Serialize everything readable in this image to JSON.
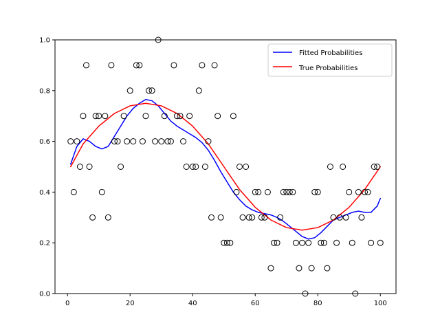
{
  "chart_data": {
    "type": "scatter",
    "title": "",
    "xlabel": "",
    "ylabel": "",
    "xlim": [
      -4,
      105
    ],
    "ylim": [
      0,
      1
    ],
    "x_ticks": [
      0,
      20,
      40,
      60,
      80,
      100
    ],
    "y_ticks": [
      0.0,
      0.2,
      0.4,
      0.6,
      0.8,
      1.0
    ],
    "x_tick_labels": [
      "0",
      "20",
      "40",
      "60",
      "80",
      "100"
    ],
    "y_tick_labels": [
      "0.0",
      "0.2",
      "0.4",
      "0.6",
      "0.8",
      "1.0"
    ],
    "grid": false,
    "legend_position": "top-right",
    "points": {
      "x": [
        1,
        2,
        3,
        4,
        5,
        6,
        7,
        8,
        9,
        10,
        11,
        12,
        13,
        14,
        15,
        16,
        17,
        18,
        19,
        20,
        21,
        22,
        23,
        24,
        25,
        26,
        27,
        28,
        29,
        30,
        31,
        32,
        33,
        34,
        35,
        36,
        37,
        38,
        39,
        40,
        41,
        42,
        43,
        44,
        45,
        46,
        47,
        48,
        49,
        50,
        51,
        52,
        53,
        54,
        55,
        56,
        57,
        58,
        59,
        60,
        61,
        62,
        63,
        64,
        65,
        66,
        67,
        68,
        69,
        70,
        71,
        72,
        73,
        74,
        75,
        76,
        77,
        78,
        79,
        80,
        81,
        82,
        83,
        84,
        85,
        86,
        87,
        88,
        89,
        90,
        91,
        92,
        93,
        94,
        95,
        96,
        97,
        98,
        99,
        100
      ],
      "y": [
        0.6,
        0.4,
        0.6,
        0.5,
        0.7,
        0.9,
        0.5,
        0.3,
        0.7,
        0.7,
        0.4,
        0.7,
        0.3,
        0.9,
        0.6,
        0.6,
        0.5,
        0.7,
        0.6,
        0.8,
        0.6,
        0.9,
        0.9,
        0.6,
        0.7,
        0.8,
        0.8,
        0.6,
        1.0,
        0.6,
        0.7,
        0.6,
        0.6,
        0.9,
        0.7,
        0.7,
        0.6,
        0.5,
        0.7,
        0.5,
        0.5,
        0.8,
        0.9,
        0.5,
        0.6,
        0.3,
        0.9,
        0.7,
        0.3,
        0.2,
        0.2,
        0.2,
        0.7,
        0.4,
        0.5,
        0.3,
        0.5,
        0.3,
        0.3,
        0.4,
        0.4,
        0.3,
        0.3,
        0.4,
        0.1,
        0.2,
        0.2,
        0.3,
        0.4,
        0.4,
        0.4,
        0.4,
        0.2,
        0.1,
        0.2,
        0.0,
        0.2,
        0.1,
        0.4,
        0.4,
        0.2,
        0.2,
        0.1,
        0.5,
        0.3,
        0.2,
        0.3,
        0.5,
        0.3,
        0.4,
        0.2,
        0.0,
        0.4,
        0.3,
        0.4,
        0.4,
        0.2,
        0.5,
        0.5,
        0.2
      ]
    },
    "series": [
      {
        "name": "Fitted Probabilities",
        "color": "#0000ff",
        "x": [
          1,
          3,
          5,
          7,
          9,
          11,
          13,
          15,
          17,
          19,
          21,
          23,
          25,
          27,
          29,
          31,
          33,
          35,
          37,
          39,
          41,
          43,
          45,
          47,
          49,
          51,
          53,
          55,
          57,
          59,
          61,
          63,
          65,
          67,
          69,
          71,
          73,
          75,
          77,
          79,
          81,
          83,
          85,
          87,
          89,
          91,
          93,
          95,
          97,
          99,
          100
        ],
        "y": [
          0.51,
          0.58,
          0.61,
          0.6,
          0.58,
          0.57,
          0.58,
          0.62,
          0.66,
          0.7,
          0.73,
          0.75,
          0.765,
          0.76,
          0.74,
          0.71,
          0.68,
          0.66,
          0.645,
          0.63,
          0.615,
          0.595,
          0.565,
          0.525,
          0.48,
          0.44,
          0.4,
          0.37,
          0.345,
          0.33,
          0.32,
          0.315,
          0.31,
          0.3,
          0.285,
          0.265,
          0.245,
          0.225,
          0.215,
          0.22,
          0.24,
          0.265,
          0.29,
          0.3,
          0.31,
          0.32,
          0.325,
          0.32,
          0.32,
          0.345,
          0.375
        ]
      },
      {
        "name": "True Probabilities",
        "color": "#ff0000",
        "x": [
          1,
          5,
          10,
          15,
          20,
          25,
          30,
          35,
          40,
          45,
          50,
          55,
          60,
          65,
          70,
          75,
          80,
          85,
          90,
          95,
          100
        ],
        "y": [
          0.5,
          0.59,
          0.66,
          0.71,
          0.74,
          0.75,
          0.74,
          0.71,
          0.66,
          0.59,
          0.5,
          0.41,
          0.34,
          0.29,
          0.26,
          0.25,
          0.26,
          0.29,
          0.34,
          0.41,
          0.5
        ]
      }
    ]
  }
}
